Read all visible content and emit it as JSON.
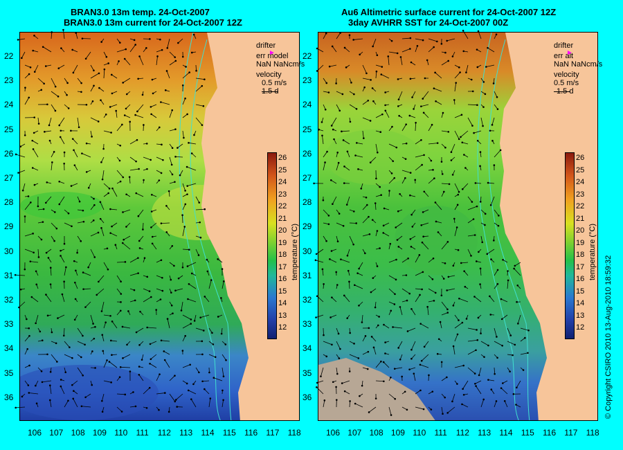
{
  "left_panel": {
    "title_line1": "BRAN3.0 13m temp. 24-Oct-2007",
    "title_line2": "BRAN3.0 13m current for 24-Oct-2007 12Z",
    "legend": {
      "drifter_label": "drifter",
      "err_label": "err model",
      "nan_label": "NaN NaNcm/s",
      "velocity_label": "velocity",
      "scale_label": "0.5 m/s",
      "duration_label": "1.5 d"
    }
  },
  "right_panel": {
    "title_line1": "Au6 Altimetric surface current for 24-Oct-2007 12Z",
    "title_line2": "3day AVHRR SST for 24-Oct-2007 00Z",
    "legend": {
      "drifter_label": "drifter",
      "err_label": "err alt",
      "nan_label": "NaN NaNcm/s",
      "velocity_label": "velocity",
      "scale_label": "0.5 m/s",
      "duration_label": "1.5 d"
    }
  },
  "latitude_labels": [
    "22",
    "23",
    "24",
    "25",
    "26",
    "27",
    "28",
    "29",
    "30",
    "31",
    "32",
    "33",
    "34",
    "35",
    "36"
  ],
  "longitude_labels": [
    "106",
    "107",
    "108",
    "109",
    "110",
    "111",
    "112",
    "113",
    "114",
    "115",
    "116",
    "117",
    "118"
  ],
  "colorbar": {
    "ticks": [
      "26",
      "25",
      "24",
      "23",
      "22",
      "21",
      "20",
      "19",
      "18",
      "17",
      "16",
      "15",
      "14",
      "13",
      "12"
    ],
    "title": "temperature (°C)"
  },
  "colors": {
    "background": "#00ffff",
    "land": "#f7c59a",
    "drifter_marker": "#ff00ff",
    "bathymetry_contour": "#40e0d0"
  },
  "copyright": "© Copyright CSIRO 2010  13-Aug-2010 18:59:32"
}
